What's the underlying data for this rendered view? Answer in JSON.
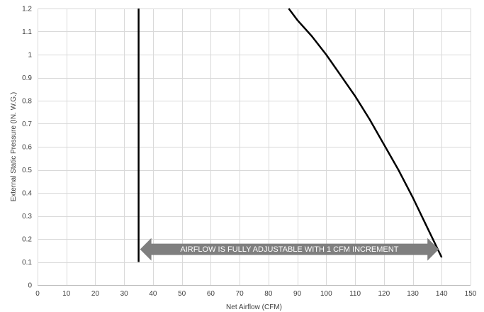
{
  "chart_data": {
    "type": "line",
    "title": "",
    "xlabel": "Net Airflow (CFM)",
    "ylabel": "External Static Pressure (IN. W.G.)",
    "xlim": [
      0,
      150
    ],
    "ylim": [
      0,
      1.2
    ],
    "x_ticks": [
      "0",
      "10",
      "20",
      "30",
      "40",
      "50",
      "60",
      "70",
      "80",
      "90",
      "100",
      "110",
      "120",
      "130",
      "140",
      "150"
    ],
    "y_ticks": [
      "0",
      "0.1",
      "0.2",
      "0.3",
      "0.4",
      "0.5",
      "0.6",
      "0.7",
      "0.8",
      "0.9",
      "1",
      "1.1",
      "1.2"
    ],
    "grid": true,
    "series": [
      {
        "x": [
          35,
          35
        ],
        "y": [
          0.1,
          1.2
        ]
      },
      {
        "x": [
          87,
          90,
          95,
          100,
          105,
          110,
          115,
          120,
          125,
          130,
          135,
          140
        ],
        "y": [
          1.2,
          1.15,
          1.08,
          1.0,
          0.91,
          0.82,
          0.72,
          0.61,
          0.5,
          0.38,
          0.25,
          0.12
        ]
      }
    ],
    "annotation": {
      "text": "AIRFLOW IS FULLY ADJUSTABLE WITH 1 CFM INCREMENT",
      "x_start": 35.5,
      "x_end": 139,
      "y": 0.155,
      "color": "#7f7f7f"
    },
    "line_color": "#000000"
  }
}
